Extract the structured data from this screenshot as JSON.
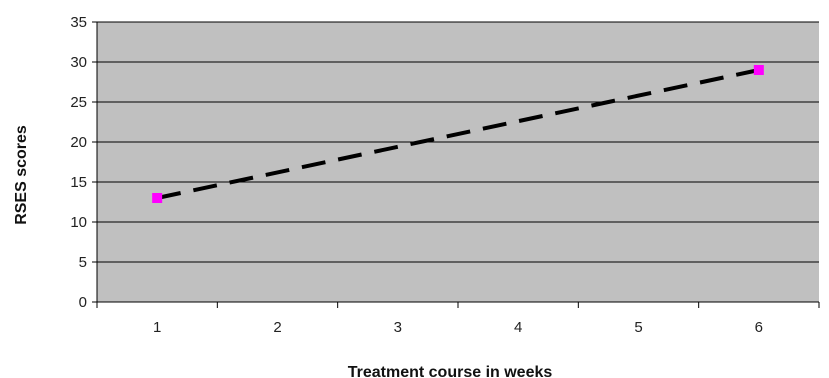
{
  "chart_data": {
    "type": "line",
    "title": "",
    "xlabel": "Treatment course in weeks",
    "ylabel": "RSES scores",
    "categories": [
      "1",
      "2",
      "3",
      "4",
      "5",
      "6"
    ],
    "xlim": [
      0.5,
      6.5
    ],
    "ylim": [
      0,
      35
    ],
    "yticks": [
      0,
      5,
      10,
      15,
      20,
      25,
      30,
      35
    ],
    "grid": true,
    "legend": "none",
    "series": [
      {
        "x": [
          1,
          6
        ],
        "y": [
          13,
          29
        ],
        "marker": "square",
        "marker_color": "#ff00ff",
        "line_color": "#000000",
        "line_style": "dashed"
      }
    ],
    "plot_background": "#c0c0c0",
    "gridline_color": "#000000"
  }
}
